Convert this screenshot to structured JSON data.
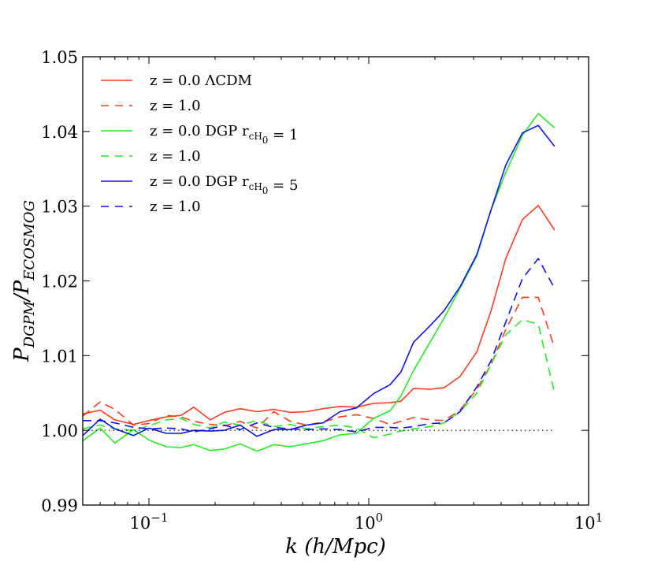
{
  "chart_data": {
    "type": "line",
    "xlabel": "k   (h/Mpc)",
    "ylabel": "P_DGPM/P_ECOSMOG",
    "x_scale": "log",
    "xlim": [
      0.05,
      10
    ],
    "ylim": [
      0.99,
      1.05
    ],
    "x_ticks": [
      0.1,
      1,
      10
    ],
    "x_tick_labels": [
      "10^-1",
      "10^0",
      "10^1"
    ],
    "y_ticks": [
      0.99,
      1.0,
      1.01,
      1.02,
      1.03,
      1.04,
      1.05
    ],
    "y_tick_labels": [
      "0.99",
      "1.00",
      "1.01",
      "1.02",
      "1.03",
      "1.04",
      "1.05"
    ],
    "grid": false,
    "legend_position": "top-left",
    "colors": {
      "lcdm": "#ff3b1f",
      "dgp1": "#22ee22",
      "dgp5": "#1111ee",
      "reference": "#000000"
    },
    "reference_line": {
      "y": 1.0,
      "xrange": [
        0.05,
        7.0
      ],
      "style": "dotted"
    },
    "series": [
      {
        "name": "z = 0.0 ΛCDM",
        "color": "#ff3b1f",
        "dash": "solid",
        "x": [
          0.05,
          0.06,
          0.07,
          0.085,
          0.1,
          0.12,
          0.14,
          0.16,
          0.19,
          0.22,
          0.26,
          0.31,
          0.37,
          0.44,
          0.52,
          0.62,
          0.74,
          0.88,
          1.05,
          1.25,
          1.4,
          1.6,
          1.9,
          2.2,
          2.6,
          3.1,
          3.6,
          4.2,
          5.0,
          5.9,
          7.0
        ],
        "y": [
          1.0022,
          1.0027,
          1.0014,
          1.0008,
          1.0013,
          1.0018,
          1.002,
          1.0031,
          1.0014,
          1.0024,
          1.0029,
          1.0025,
          1.0028,
          1.0024,
          1.0025,
          1.0029,
          1.0032,
          1.0031,
          1.0036,
          1.0037,
          1.0039,
          1.0056,
          1.0055,
          1.0057,
          1.0072,
          1.0105,
          1.016,
          1.023,
          1.0282,
          1.0301,
          1.0268
        ]
      },
      {
        "name": "z = 1.0",
        "color": "#ff3b1f",
        "dash": "dashed",
        "x": [
          0.05,
          0.06,
          0.07,
          0.085,
          0.1,
          0.12,
          0.14,
          0.16,
          0.19,
          0.22,
          0.26,
          0.31,
          0.37,
          0.44,
          0.52,
          0.62,
          0.74,
          0.88,
          1.05,
          1.25,
          1.4,
          1.6,
          1.9,
          2.2,
          2.6,
          3.1,
          3.6,
          4.2,
          5.0,
          5.9,
          7.0
        ],
        "y": [
          1.0019,
          1.0038,
          1.0028,
          1.0007,
          1.0009,
          1.002,
          1.0018,
          1.0012,
          1.0008,
          1.0006,
          1.0012,
          1.0003,
          1.0025,
          1.0012,
          1.0007,
          1.0011,
          1.0018,
          1.0021,
          1.0016,
          1.0008,
          1.0012,
          1.0017,
          1.0014,
          1.0013,
          1.0027,
          1.0055,
          1.0088,
          1.0135,
          1.0178,
          1.0178,
          1.011
        ]
      },
      {
        "name": "z = 0.0 DGP r_cH_0 = 1",
        "color": "#22ee22",
        "dash": "solid",
        "x": [
          0.05,
          0.06,
          0.07,
          0.085,
          0.1,
          0.12,
          0.14,
          0.16,
          0.19,
          0.22,
          0.26,
          0.31,
          0.37,
          0.44,
          0.52,
          0.62,
          0.74,
          0.88,
          1.05,
          1.25,
          1.4,
          1.6,
          1.9,
          2.2,
          2.6,
          3.1,
          3.6,
          4.2,
          5.0,
          5.9,
          7.0
        ],
        "y": [
          0.9986,
          1.0003,
          0.9983,
          1.0001,
          0.9987,
          0.9978,
          0.9977,
          0.9981,
          0.9973,
          0.9975,
          0.9982,
          0.9972,
          0.9981,
          0.9978,
          0.9982,
          0.9986,
          0.9994,
          0.9996,
          1.0016,
          1.0026,
          1.0046,
          1.008,
          1.0118,
          1.015,
          1.019,
          1.0233,
          1.0295,
          1.0345,
          1.0395,
          1.0424,
          1.0405
        ]
      },
      {
        "name": "z = 1.0",
        "color": "#22ee22",
        "dash": "dashed",
        "x": [
          0.05,
          0.06,
          0.07,
          0.085,
          0.1,
          0.12,
          0.14,
          0.16,
          0.19,
          0.22,
          0.26,
          0.31,
          0.37,
          0.44,
          0.52,
          0.62,
          0.74,
          0.88,
          1.05,
          1.25,
          1.4,
          1.6,
          1.9,
          2.2,
          2.6,
          3.1,
          3.6,
          4.2,
          5.0,
          5.9,
          7.0
        ],
        "y": [
          1.0002,
          1.0007,
          1.0002,
          1.0,
          1.0006,
          1.0014,
          1.0016,
          1.0008,
          1.0003,
          1.0011,
          1.0007,
          1.0013,
          1.0005,
          1.0008,
          1.0002,
          1.0005,
          1.0007,
          1.0003,
          0.999,
          0.9995,
          0.9999,
          1.0002,
          1.0005,
          1.001,
          1.0025,
          1.005,
          1.0088,
          1.0128,
          1.0148,
          1.0142,
          1.005
        ]
      },
      {
        "name": "z = 0.0 DGP r_cH_0 = 5",
        "color": "#1111ee",
        "dash": "solid",
        "x": [
          0.05,
          0.06,
          0.07,
          0.085,
          0.1,
          0.12,
          0.14,
          0.16,
          0.19,
          0.22,
          0.26,
          0.31,
          0.37,
          0.44,
          0.52,
          0.62,
          0.74,
          0.88,
          1.05,
          1.25,
          1.4,
          1.6,
          1.9,
          2.2,
          2.6,
          3.1,
          3.6,
          4.2,
          5.0,
          5.9,
          7.0
        ],
        "y": [
          0.9993,
          1.0015,
          1.0002,
          0.9993,
          1.0003,
          0.9996,
          0.9996,
          1.0,
          0.9999,
          1.0,
          1.0007,
          0.9992,
          1.0001,
          1.0001,
          1.0007,
          1.001,
          1.0025,
          1.003,
          1.0049,
          1.0061,
          1.0078,
          1.0118,
          1.014,
          1.016,
          1.0192,
          1.0235,
          1.0295,
          1.0355,
          1.0398,
          1.0408,
          1.038
        ]
      },
      {
        "name": "z = 1.0",
        "color": "#1111ee",
        "dash": "dashed",
        "x": [
          0.05,
          0.06,
          0.07,
          0.085,
          0.1,
          0.12,
          0.14,
          0.16,
          0.19,
          0.22,
          0.26,
          0.31,
          0.37,
          0.44,
          0.52,
          0.62,
          0.74,
          0.88,
          1.05,
          1.25,
          1.4,
          1.6,
          1.9,
          2.2,
          2.6,
          3.1,
          3.6,
          4.2,
          5.0,
          5.9,
          7.0
        ],
        "y": [
          1.0013,
          1.0013,
          1.001,
          1.0004,
          1.0002,
          1.0003,
          1.0002,
          0.9998,
          1.0002,
          1.0007,
          1.0001,
          1.001,
          1.0004,
          1.0002,
          1.0001,
          1.0002,
          1.0001,
          0.9998,
          1.0004,
          1.0004,
          1.0003,
          1.0005,
          1.0009,
          1.001,
          1.0025,
          1.0058,
          1.0093,
          1.0145,
          1.0203,
          1.023,
          1.019
        ]
      }
    ],
    "legend": [
      {
        "label": "z = 0.0 ΛCDM",
        "color": "#ff3b1f",
        "dash": "solid"
      },
      {
        "label": "z = 1.0",
        "color": "#ff3b1f",
        "dash": "dashed"
      },
      {
        "label": "z = 0.0 DGP r_cH_0 = 1",
        "color": "#22ee22",
        "dash": "solid"
      },
      {
        "label": "z = 1.0",
        "color": "#22ee22",
        "dash": "dashed"
      },
      {
        "label": "z = 0.0 DGP r_cH_0 = 5",
        "color": "#1111ee",
        "dash": "solid"
      },
      {
        "label": "z = 1.0",
        "color": "#1111ee",
        "dash": "dashed"
      }
    ]
  }
}
